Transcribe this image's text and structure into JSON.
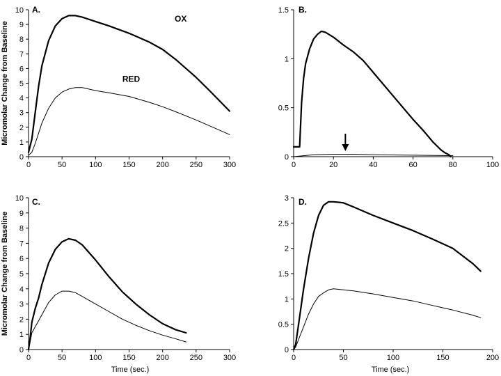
{
  "chart_data": [
    {
      "panel": "A.",
      "type": "line",
      "xlim": [
        0,
        300
      ],
      "ylim": [
        0,
        10
      ],
      "xticks": [
        "0",
        "50",
        "100",
        "150",
        "200",
        "250",
        "300"
      ],
      "yticks": [
        "0",
        "1",
        "2",
        "3",
        "4",
        "5",
        "6",
        "7",
        "8",
        "9",
        "10"
      ],
      "xlabel": "",
      "ylabel": "Micromolar Change from Baseline",
      "series": [
        {
          "name": "OX",
          "stroke": "thick",
          "x": [
            0,
            5,
            10,
            15,
            20,
            30,
            40,
            50,
            60,
            70,
            80,
            100,
            120,
            150,
            180,
            200,
            220,
            250,
            270,
            300
          ],
          "y": [
            0.3,
            1.2,
            3.0,
            4.8,
            6.2,
            7.9,
            8.9,
            9.4,
            9.6,
            9.6,
            9.5,
            9.2,
            8.9,
            8.4,
            7.8,
            7.3,
            6.6,
            5.4,
            4.5,
            3.1
          ]
        },
        {
          "name": "RED",
          "stroke": "thin",
          "x": [
            0,
            5,
            10,
            15,
            20,
            30,
            40,
            50,
            60,
            70,
            80,
            100,
            120,
            150,
            180,
            200,
            220,
            250,
            270,
            300
          ],
          "y": [
            0.1,
            0.3,
            0.9,
            1.6,
            2.3,
            3.3,
            4.0,
            4.4,
            4.6,
            4.7,
            4.7,
            4.5,
            4.35,
            4.1,
            3.7,
            3.4,
            3.05,
            2.5,
            2.1,
            1.5
          ]
        }
      ]
    },
    {
      "panel": "B.",
      "type": "line",
      "xlim": [
        0,
        100
      ],
      "ylim": [
        0,
        1.5
      ],
      "xticks": [
        "0",
        "20",
        "40",
        "60",
        "80",
        "100"
      ],
      "yticks": [
        "0",
        "0.5",
        "1",
        "1.5"
      ],
      "xlabel": "",
      "ylabel": "",
      "arrow_at_x": 26,
      "series": [
        {
          "name": "",
          "stroke": "thick",
          "x": [
            0,
            1,
            2,
            3,
            4,
            5,
            6,
            8,
            10,
            12,
            14,
            16,
            20,
            25,
            30,
            35,
            40,
            45,
            50,
            55,
            60,
            65,
            70,
            74,
            76,
            78,
            79
          ],
          "y": [
            0.1,
            0.1,
            0.1,
            0.1,
            0.55,
            0.8,
            0.95,
            1.1,
            1.2,
            1.25,
            1.28,
            1.27,
            1.22,
            1.14,
            1.07,
            0.98,
            0.86,
            0.74,
            0.62,
            0.5,
            0.38,
            0.27,
            0.15,
            0.07,
            0.04,
            0.02,
            0.0
          ]
        },
        {
          "name": "",
          "stroke": "thin",
          "x": [
            0,
            5,
            10,
            20,
            30,
            40,
            60,
            80
          ],
          "y": [
            0.0,
            0.01,
            0.02,
            0.025,
            0.025,
            0.02,
            0.015,
            0.01
          ]
        }
      ]
    },
    {
      "panel": "C.",
      "type": "line",
      "xlim": [
        0,
        300
      ],
      "ylim": [
        0,
        10
      ],
      "xticks": [
        "0",
        "50",
        "100",
        "150",
        "200",
        "250",
        "300"
      ],
      "yticks": [
        "0",
        "1",
        "2",
        "3",
        "4",
        "5",
        "6",
        "7",
        "8",
        "9",
        "10"
      ],
      "xlabel": "Time (sec.)",
      "ylabel": "Micromolar Change from Baseline",
      "series": [
        {
          "name": "",
          "stroke": "thick",
          "x": [
            0,
            2,
            5,
            10,
            15,
            20,
            30,
            40,
            50,
            60,
            70,
            80,
            100,
            120,
            140,
            160,
            180,
            200,
            220,
            235
          ],
          "y": [
            0.0,
            0.6,
            1.8,
            2.7,
            3.4,
            4.3,
            5.7,
            6.6,
            7.1,
            7.3,
            7.2,
            6.9,
            5.9,
            4.8,
            3.8,
            3.0,
            2.3,
            1.7,
            1.3,
            1.1
          ]
        },
        {
          "name": "",
          "stroke": "thin",
          "x": [
            0,
            2,
            5,
            10,
            15,
            20,
            30,
            40,
            50,
            60,
            70,
            80,
            100,
            120,
            140,
            160,
            180,
            200,
            220,
            235
          ],
          "y": [
            0.0,
            0.4,
            1.1,
            1.5,
            1.9,
            2.3,
            3.1,
            3.6,
            3.85,
            3.85,
            3.75,
            3.5,
            3.0,
            2.5,
            2.0,
            1.6,
            1.25,
            0.95,
            0.7,
            0.5
          ]
        }
      ]
    },
    {
      "panel": "D.",
      "type": "line",
      "xlim": [
        0,
        200
      ],
      "ylim": [
        0,
        3
      ],
      "xticks": [
        "0",
        "50",
        "100",
        "150",
        "200"
      ],
      "yticks": [
        "0",
        "0.5",
        "1",
        "1.5",
        "2",
        "2.5",
        "3"
      ],
      "xlabel": "Time (sec.)",
      "ylabel": "",
      "series": [
        {
          "name": "",
          "stroke": "thick",
          "x": [
            0,
            2,
            5,
            10,
            15,
            20,
            25,
            30,
            35,
            40,
            45,
            50,
            60,
            80,
            100,
            120,
            140,
            160,
            180,
            188
          ],
          "y": [
            0.0,
            0.1,
            0.5,
            1.2,
            1.8,
            2.3,
            2.65,
            2.85,
            2.92,
            2.92,
            2.91,
            2.9,
            2.82,
            2.65,
            2.5,
            2.35,
            2.18,
            2.0,
            1.7,
            1.55
          ]
        },
        {
          "name": "",
          "stroke": "thin",
          "x": [
            0,
            2,
            5,
            10,
            15,
            20,
            25,
            30,
            35,
            40,
            45,
            50,
            60,
            80,
            100,
            120,
            140,
            160,
            180,
            188
          ],
          "y": [
            0.0,
            0.05,
            0.2,
            0.45,
            0.7,
            0.9,
            1.05,
            1.12,
            1.18,
            1.2,
            1.19,
            1.18,
            1.16,
            1.1,
            1.03,
            0.96,
            0.87,
            0.78,
            0.68,
            0.63
          ]
        }
      ]
    }
  ]
}
